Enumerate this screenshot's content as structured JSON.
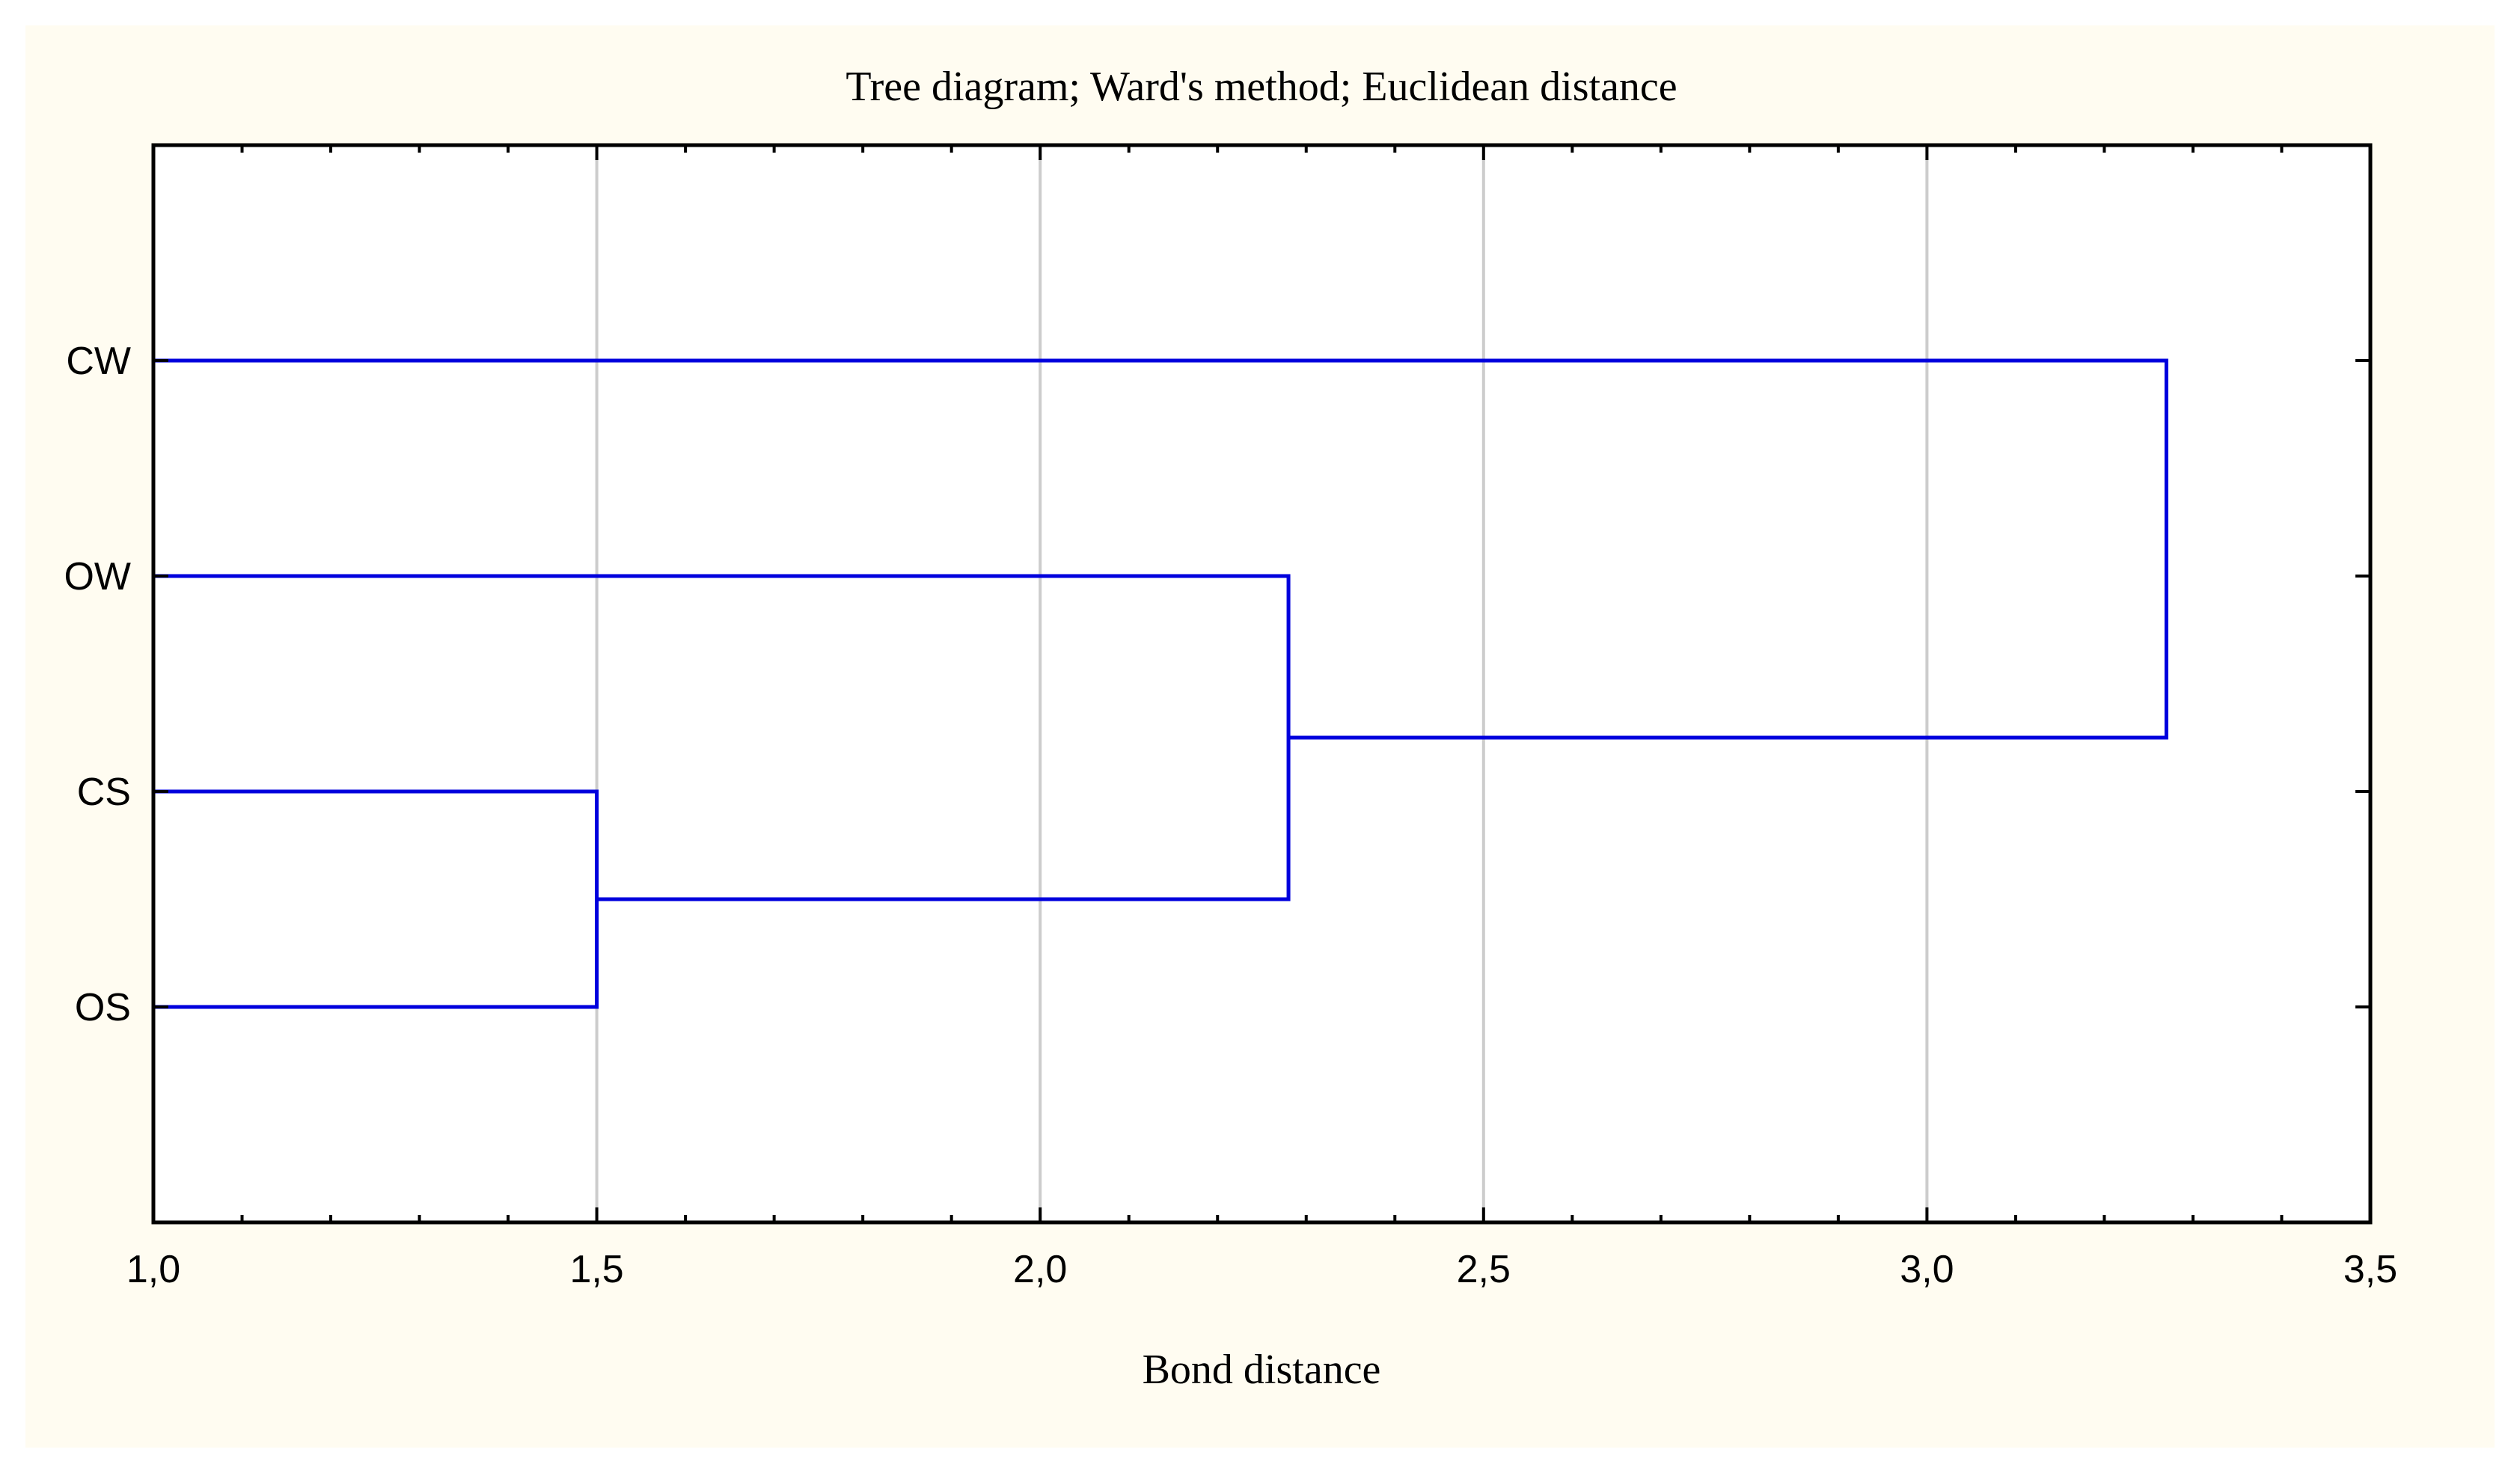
{
  "chart_data": {
    "type": "dendrogram",
    "title": "Tree diagram; Ward's method; Euclidean distance",
    "xlabel": "Bond distance",
    "ylabel": "",
    "xlim": [
      1.0,
      3.5
    ],
    "x_major_ticks": [
      1.0,
      1.5,
      2.0,
      2.5,
      3.0,
      3.5
    ],
    "x_tick_labels": [
      "1,0",
      "1,5",
      "2,0",
      "2,5",
      "3,0",
      "3,5"
    ],
    "x_minor_step": 0.1,
    "grid": true,
    "leaves": [
      "CW",
      "OW",
      "CS",
      "OS"
    ],
    "merges": [
      {
        "left": "CS",
        "right": "OS",
        "distance": 1.5
      },
      {
        "left": "OW",
        "right": "CS+OS",
        "distance": 2.28
      },
      {
        "left": "CW",
        "right": "OW+CS+OS",
        "distance": 3.27
      }
    ],
    "colors": {
      "background": "#fffcf1",
      "plot_background": "#ffffff",
      "line": "#0000dd",
      "grid": "#cccccc",
      "axis": "#000000"
    }
  }
}
